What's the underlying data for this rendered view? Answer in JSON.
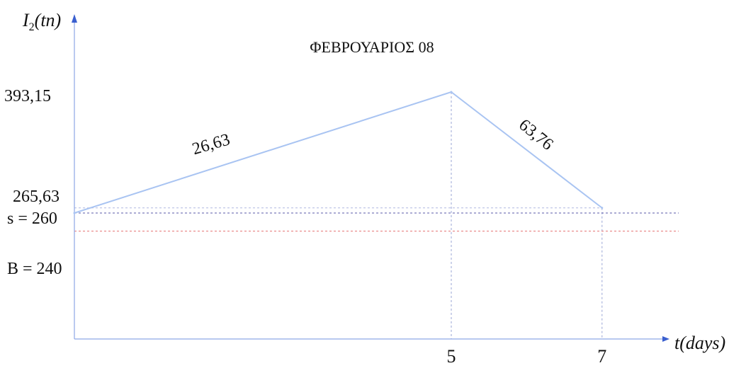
{
  "chart_data": {
    "type": "line",
    "title": "ΦΕΒΡΟΥΑΡΙΟΣ 08",
    "xlabel": {
      "var": "t",
      "unit": "(days)"
    },
    "ylabel": {
      "var": "I",
      "sub": "2",
      "unit": "(tn)"
    },
    "x_ticks": [
      "5",
      "7"
    ],
    "y_ticks": [
      "393,15",
      "265,63"
    ],
    "series": [
      {
        "x": [
          0,
          5,
          7
        ],
        "y": [
          260,
          393.15,
          265.63
        ]
      }
    ],
    "segment_labels": [
      "26,63",
      "63,76"
    ],
    "reference_lines": [
      {
        "label": "s = 260",
        "value": 260,
        "color": "#5a5aa8"
      },
      {
        "label": "B = 240",
        "value": 240,
        "color": "#e57373"
      }
    ],
    "xlim": [
      0,
      8
    ],
    "grid": false
  }
}
